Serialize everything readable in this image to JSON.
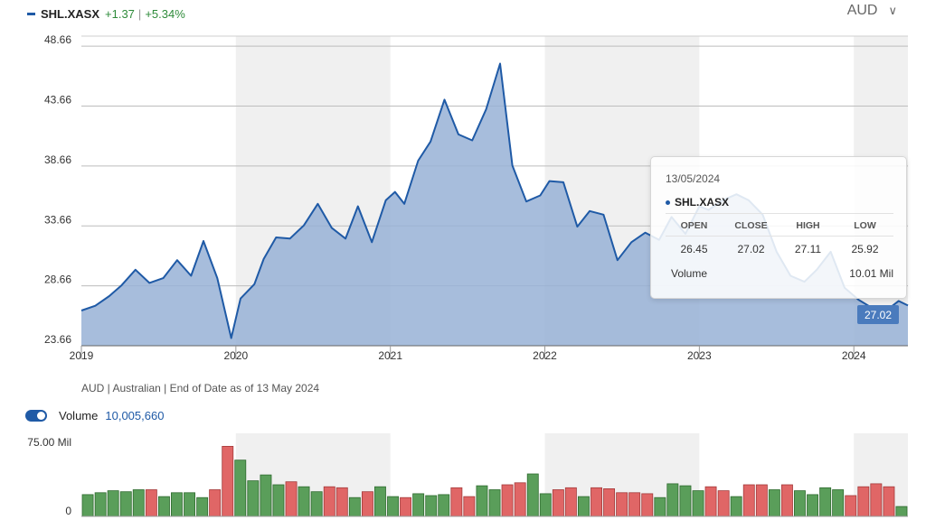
{
  "header": {
    "symbol": "SHL.XASX",
    "change": "+1.37",
    "change_pct": "+5.34%",
    "separator": "|",
    "currency": "AUD",
    "currency_chevron": "∨",
    "series_color": "#1f5aa6",
    "positive_color": "#2e8b3a"
  },
  "footnote": "AUD | Australian | End of Date as of 13 May 2024",
  "volume_header": {
    "label": "Volume",
    "value": "10,005,660"
  },
  "tooltip": {
    "date": "13/05/2024",
    "symbol": "SHL.XASX",
    "headers": [
      "OPEN",
      "CLOSE",
      "HIGH",
      "LOW"
    ],
    "values": [
      "26.45",
      "27.02",
      "27.11",
      "25.92"
    ],
    "volume_label": "Volume",
    "volume_value": "10.01 Mil"
  },
  "last_price_label": "27.02",
  "chart_data": [
    {
      "type": "area",
      "title": "",
      "xlabel": "",
      "ylabel": "",
      "y_ticks": [
        "48.66",
        "43.66",
        "38.66",
        "33.66",
        "28.66",
        "23.66"
      ],
      "x_ticks": [
        "2019",
        "2020",
        "2021",
        "2022",
        "2023",
        "2024"
      ],
      "ylim": [
        23.66,
        49.5
      ],
      "xlim": [
        2019.0,
        2024.35
      ],
      "grid": true,
      "alternating_year_shading": true,
      "series": [
        {
          "name": "SHL.XASX",
          "color": "#1f5aa6",
          "x": [
            2019.0,
            2019.09,
            2019.18,
            2019.26,
            2019.35,
            2019.44,
            2019.53,
            2019.62,
            2019.71,
            2019.79,
            2019.88,
            2019.97,
            2020.03,
            2020.12,
            2020.18,
            2020.26,
            2020.35,
            2020.44,
            2020.53,
            2020.62,
            2020.71,
            2020.79,
            2020.88,
            2020.97,
            2021.03,
            2021.09,
            2021.18,
            2021.26,
            2021.35,
            2021.44,
            2021.53,
            2021.62,
            2021.71,
            2021.79,
            2021.88,
            2021.97,
            2022.03,
            2022.12,
            2022.21,
            2022.29,
            2022.38,
            2022.47,
            2022.56,
            2022.65,
            2022.74,
            2022.82,
            2022.91,
            2023.0,
            2023.06,
            2023.15,
            2023.24,
            2023.32,
            2023.41,
            2023.5,
            2023.59,
            2023.68,
            2023.76,
            2023.85,
            2023.94,
            2024.03,
            2024.12,
            2024.2,
            2024.29,
            2024.35
          ],
          "y": [
            26.6,
            27.0,
            27.8,
            28.7,
            30.0,
            28.9,
            29.3,
            30.8,
            29.5,
            32.4,
            29.3,
            24.3,
            27.6,
            28.8,
            30.9,
            32.7,
            32.6,
            33.7,
            35.5,
            33.5,
            32.6,
            35.3,
            32.3,
            35.8,
            36.5,
            35.5,
            39.1,
            40.7,
            44.2,
            41.3,
            40.8,
            43.4,
            47.2,
            38.7,
            35.7,
            36.2,
            37.4,
            37.3,
            33.6,
            34.9,
            34.6,
            30.8,
            32.3,
            33.1,
            32.5,
            34.4,
            33.0,
            35.3,
            35.0,
            35.8,
            36.3,
            35.8,
            34.6,
            31.5,
            29.5,
            29.0,
            30.0,
            31.5,
            28.5,
            27.5,
            26.8,
            26.5,
            27.4,
            27.02
          ]
        }
      ]
    },
    {
      "type": "bar",
      "title": "",
      "xlabel": "",
      "ylabel": "",
      "y_ticks": [
        "75.00 Mil",
        "0"
      ],
      "ylim": [
        0,
        75
      ],
      "unit": "Mil",
      "up_color": "#5a9e5a",
      "down_color": "#e06666",
      "series": [
        {
          "values": [
            22,
            24,
            26,
            25,
            27,
            27,
            20,
            24,
            24,
            19,
            27,
            71,
            57,
            36,
            42,
            32,
            35,
            30,
            25,
            30,
            29,
            19,
            25,
            30,
            20,
            19,
            23,
            21,
            22,
            29,
            20,
            31,
            27,
            32,
            34,
            43,
            23,
            27,
            29,
            20,
            29,
            28,
            24,
            24,
            23,
            19,
            33,
            31,
            26,
            30,
            26,
            20,
            32,
            32,
            27,
            32,
            26,
            22,
            29,
            27,
            21,
            30,
            33,
            30,
            10
          ],
          "direction": [
            "up",
            "up",
            "up",
            "up",
            "up",
            "down",
            "up",
            "up",
            "up",
            "up",
            "down",
            "down",
            "up",
            "up",
            "up",
            "up",
            "down",
            "up",
            "up",
            "down",
            "down",
            "up",
            "down",
            "up",
            "up",
            "down",
            "up",
            "up",
            "up",
            "down",
            "down",
            "up",
            "up",
            "down",
            "down",
            "up",
            "up",
            "down",
            "down",
            "up",
            "down",
            "down",
            "down",
            "down",
            "down",
            "up",
            "up",
            "up",
            "up",
            "down",
            "down",
            "up",
            "down",
            "down",
            "up",
            "down",
            "up",
            "up",
            "up",
            "up",
            "down",
            "down",
            "down",
            "down",
            "up"
          ]
        }
      ]
    }
  ]
}
